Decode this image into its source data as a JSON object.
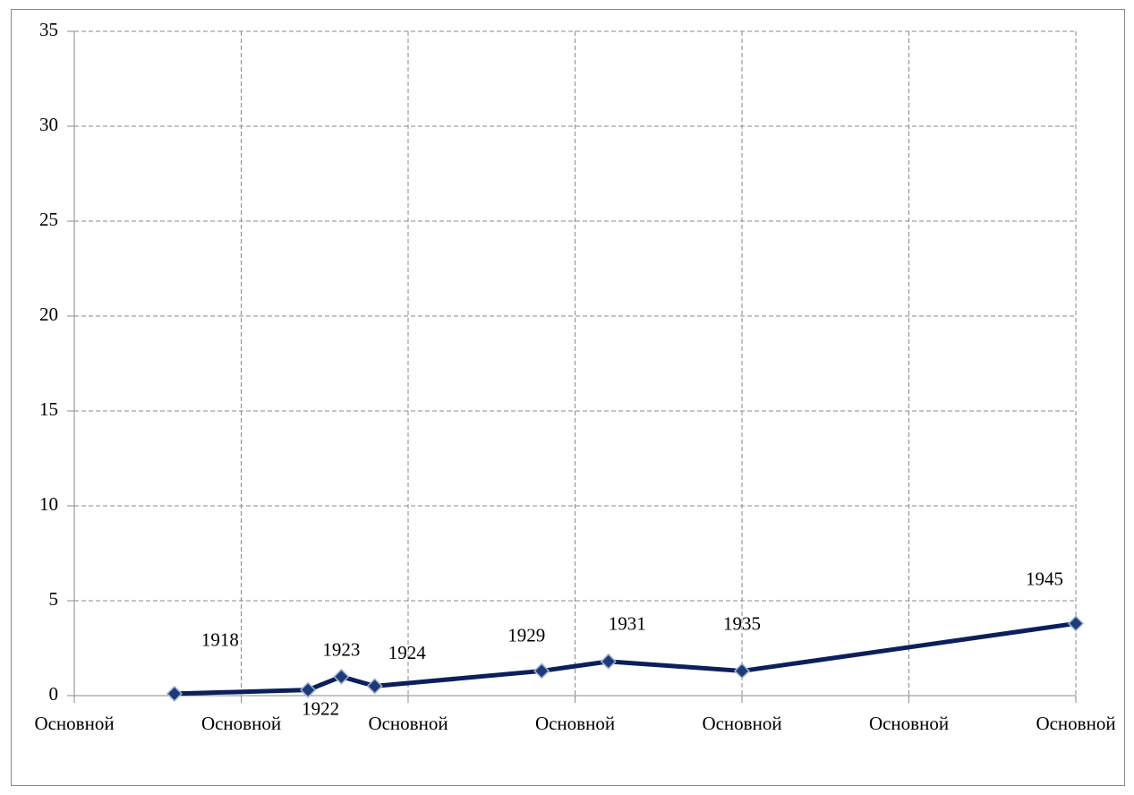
{
  "chart_data": {
    "type": "line",
    "x": [
      1918,
      1922,
      1923,
      1924,
      1929,
      1931,
      1935,
      1945
    ],
    "series": [
      {
        "color": "#0b1f5c",
        "values": [
          0.1,
          0.3,
          1.0,
          0.5,
          1.3,
          1.8,
          1.3,
          3.8
        ]
      }
    ],
    "xlim": [
      1915,
      1945
    ],
    "xticks": [
      {
        "value": 1915,
        "label": "Основной"
      },
      {
        "value": 1920,
        "label": "Основной"
      },
      {
        "value": 1925,
        "label": "Основной"
      },
      {
        "value": 1930,
        "label": "Основной"
      },
      {
        "value": 1935,
        "label": "Основной"
      },
      {
        "value": 1940,
        "label": "Основной"
      },
      {
        "value": 1945,
        "label": "Основной"
      }
    ],
    "ylim": [
      0,
      35
    ],
    "yticks": [
      0,
      5,
      10,
      15,
      20,
      25,
      30,
      35
    ],
    "grid": true
  }
}
